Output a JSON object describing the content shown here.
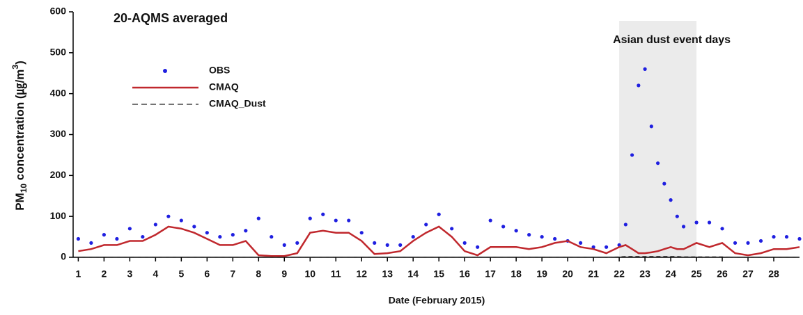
{
  "chart_data": {
    "type": "line",
    "title": "20-AQMS averaged",
    "x_label": "Date (February 2015)",
    "y_label": {
      "main": "PM",
      "sub": "10",
      "rest": " concentration (㎍/m",
      "sup": "3",
      "end": ")"
    },
    "x": [
      1,
      1.5,
      2,
      2.5,
      3,
      3.5,
      4,
      4.5,
      5,
      5.5,
      6,
      6.5,
      7,
      7.5,
      8,
      8.5,
      9,
      9.5,
      10,
      10.5,
      11,
      11.5,
      12,
      12.5,
      13,
      13.5,
      14,
      14.5,
      15,
      15.5,
      16,
      16.5,
      17,
      17.5,
      18,
      18.5,
      19,
      19.5,
      20,
      20.5,
      21,
      21.5,
      22,
      22.25,
      22.5,
      22.75,
      23,
      23.25,
      23.5,
      23.75,
      24,
      24.25,
      24.5,
      25,
      25.5,
      26,
      26.5,
      27,
      27.5,
      28,
      28.5,
      29
    ],
    "series": [
      {
        "name": "OBS",
        "color": "#1f1fe0",
        "mode": "markers",
        "values": [
          45,
          35,
          55,
          45,
          70,
          50,
          80,
          100,
          90,
          75,
          60,
          50,
          55,
          65,
          95,
          50,
          30,
          35,
          95,
          105,
          90,
          90,
          60,
          35,
          30,
          30,
          50,
          80,
          105,
          70,
          35,
          25,
          90,
          75,
          65,
          55,
          50,
          45,
          40,
          35,
          25,
          25,
          30,
          80,
          250,
          420,
          460,
          320,
          230,
          180,
          140,
          100,
          75,
          85,
          85,
          70,
          35,
          35,
          40,
          50,
          50,
          45
        ]
      },
      {
        "name": "CMAQ",
        "color": "#c0282d",
        "mode": "line",
        "values": [
          15,
          20,
          30,
          30,
          40,
          40,
          55,
          75,
          70,
          60,
          45,
          30,
          30,
          40,
          5,
          3,
          3,
          10,
          60,
          65,
          60,
          60,
          40,
          8,
          10,
          15,
          40,
          60,
          75,
          50,
          15,
          5,
          25,
          25,
          25,
          20,
          25,
          35,
          40,
          25,
          20,
          10,
          25,
          30,
          20,
          10,
          10,
          12,
          15,
          20,
          25,
          20,
          20,
          35,
          25,
          35,
          10,
          5,
          10,
          20,
          20,
          25
        ]
      },
      {
        "name": "CMAQ_Dust",
        "color": "#222222",
        "mode": "dashed",
        "values": [
          0,
          0,
          0,
          0,
          0,
          0,
          0,
          0,
          0,
          0,
          0,
          0,
          0,
          0,
          0,
          0,
          0,
          0,
          0,
          0,
          0,
          0,
          0,
          0,
          0,
          0,
          0,
          0,
          0,
          0,
          0,
          0,
          0,
          0,
          0,
          0,
          0,
          0,
          0,
          0,
          0,
          0,
          1,
          2,
          2,
          2,
          2,
          2,
          2,
          2,
          2,
          2,
          1,
          1,
          1,
          1,
          0,
          0,
          0,
          0,
          0,
          0
        ]
      }
    ],
    "xlim": [
      0.8,
      29
    ],
    "ylim": [
      0,
      600
    ],
    "xticks": [
      1,
      2,
      3,
      4,
      5,
      6,
      7,
      8,
      9,
      10,
      11,
      12,
      13,
      14,
      15,
      16,
      17,
      18,
      19,
      20,
      21,
      22,
      23,
      24,
      25,
      26,
      27,
      28
    ],
    "yticks": [
      0,
      100,
      200,
      300,
      400,
      500,
      600
    ],
    "shaded_region": {
      "x": [
        22,
        25
      ],
      "label": "Asian dust event days",
      "color": "#ebebeb"
    }
  }
}
